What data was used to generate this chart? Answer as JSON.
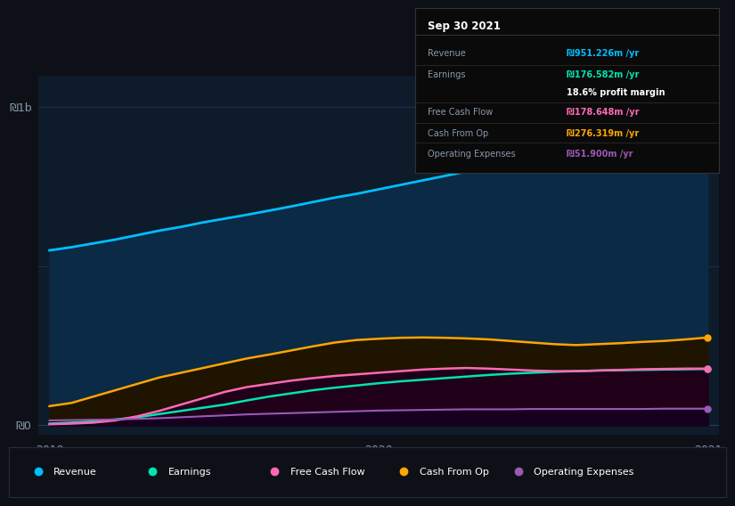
{
  "bg_color": "#0d1117",
  "plot_bg_color": "#0d1b2a",
  "title_text": "Sep 30 2021",
  "tooltip_rows": [
    {
      "label": "Revenue",
      "value": "₪951.226m /yr",
      "value_color": "#00bfff",
      "separator_after": true
    },
    {
      "label": "Earnings",
      "value": "₪176.582m /yr",
      "value_color": "#00e5b0",
      "separator_after": false
    },
    {
      "label": null,
      "value": "18.6% profit margin",
      "value_color": "white",
      "separator_after": true
    },
    {
      "label": "Free Cash Flow",
      "value": "₪178.648m /yr",
      "value_color": "#ff69b4",
      "separator_after": true
    },
    {
      "label": "Cash From Op",
      "value": "₪276.319m /yr",
      "value_color": "#ffa500",
      "separator_after": true
    },
    {
      "label": "Operating Expenses",
      "value": "₪51.900m /yr",
      "value_color": "#9b59b6",
      "separator_after": false
    }
  ],
  "x_ticks": [
    0,
    1.5,
    3.0
  ],
  "x_tick_labels": [
    "2019",
    "2020",
    "2021"
  ],
  "y_label_0": "₪0",
  "y_label_1b": "₪1b",
  "series": {
    "Revenue": {
      "color": "#00bfff",
      "fill_color": "#0a2a45",
      "x": [
        0,
        0.1,
        0.2,
        0.3,
        0.4,
        0.5,
        0.6,
        0.7,
        0.8,
        0.9,
        1.0,
        1.1,
        1.2,
        1.3,
        1.4,
        1.5,
        1.6,
        1.7,
        1.8,
        1.9,
        2.0,
        2.1,
        2.2,
        2.3,
        2.4,
        2.5,
        2.6,
        2.7,
        2.8,
        2.9,
        3.0
      ],
      "y": [
        550,
        560,
        572,
        584,
        598,
        612,
        624,
        638,
        650,
        662,
        675,
        688,
        702,
        716,
        728,
        742,
        756,
        770,
        784,
        798,
        812,
        826,
        840,
        855,
        870,
        886,
        900,
        916,
        930,
        945,
        951
      ]
    },
    "Cash From Op": {
      "color": "#ffa500",
      "fill_color": "#1e1400",
      "x": [
        0,
        0.1,
        0.2,
        0.3,
        0.4,
        0.5,
        0.6,
        0.7,
        0.8,
        0.9,
        1.0,
        1.1,
        1.2,
        1.3,
        1.4,
        1.5,
        1.6,
        1.7,
        1.8,
        1.9,
        2.0,
        2.1,
        2.2,
        2.3,
        2.4,
        2.5,
        2.6,
        2.7,
        2.8,
        2.9,
        3.0
      ],
      "y": [
        60,
        70,
        90,
        110,
        130,
        150,
        165,
        180,
        195,
        210,
        222,
        235,
        248,
        260,
        268,
        272,
        275,
        276,
        275,
        273,
        270,
        265,
        260,
        255,
        252,
        255,
        258,
        262,
        265,
        270,
        276
      ]
    },
    "Earnings": {
      "color": "#00e5b0",
      "fill_color": "#002a20",
      "x": [
        0,
        0.1,
        0.2,
        0.3,
        0.4,
        0.5,
        0.6,
        0.7,
        0.8,
        0.9,
        1.0,
        1.1,
        1.2,
        1.3,
        1.4,
        1.5,
        1.6,
        1.7,
        1.8,
        1.9,
        2.0,
        2.1,
        2.2,
        2.3,
        2.4,
        2.5,
        2.6,
        2.7,
        2.8,
        2.9,
        3.0
      ],
      "y": [
        5,
        8,
        12,
        18,
        25,
        35,
        45,
        55,
        65,
        78,
        90,
        100,
        110,
        118,
        125,
        132,
        138,
        143,
        148,
        153,
        158,
        162,
        165,
        168,
        170,
        172,
        173,
        174,
        175,
        176,
        177
      ]
    },
    "Free Cash Flow": {
      "color": "#ff69b4",
      "fill_color": "#200018",
      "x": [
        0,
        0.1,
        0.2,
        0.3,
        0.4,
        0.5,
        0.6,
        0.7,
        0.8,
        0.9,
        1.0,
        1.1,
        1.2,
        1.3,
        1.4,
        1.5,
        1.6,
        1.7,
        1.8,
        1.9,
        2.0,
        2.1,
        2.2,
        2.3,
        2.4,
        2.5,
        2.6,
        2.7,
        2.8,
        2.9,
        3.0
      ],
      "y": [
        3,
        5,
        8,
        15,
        28,
        45,
        65,
        85,
        105,
        120,
        130,
        140,
        148,
        155,
        160,
        165,
        170,
        175,
        178,
        180,
        178,
        175,
        172,
        170,
        170,
        172,
        174,
        176,
        177,
        178,
        178
      ]
    },
    "Operating Expenses": {
      "color": "#9b59b6",
      "fill_color": "#150020",
      "x": [
        0,
        0.1,
        0.2,
        0.3,
        0.4,
        0.5,
        0.6,
        0.7,
        0.8,
        0.9,
        1.0,
        1.1,
        1.2,
        1.3,
        1.4,
        1.5,
        1.6,
        1.7,
        1.8,
        1.9,
        2.0,
        2.1,
        2.2,
        2.3,
        2.4,
        2.5,
        2.6,
        2.7,
        2.8,
        2.9,
        3.0
      ],
      "y": [
        15,
        16,
        17,
        18,
        20,
        22,
        25,
        28,
        31,
        34,
        36,
        38,
        40,
        42,
        44,
        46,
        47,
        48,
        49,
        50,
        50,
        50,
        51,
        51,
        51,
        51,
        51,
        51,
        52,
        52,
        52
      ]
    }
  },
  "legend": [
    {
      "label": "Revenue",
      "color": "#00bfff"
    },
    {
      "label": "Earnings",
      "color": "#00e5b0"
    },
    {
      "label": "Free Cash Flow",
      "color": "#ff69b4"
    },
    {
      "label": "Cash From Op",
      "color": "#ffa500"
    },
    {
      "label": "Operating Expenses",
      "color": "#9b59b6"
    }
  ]
}
